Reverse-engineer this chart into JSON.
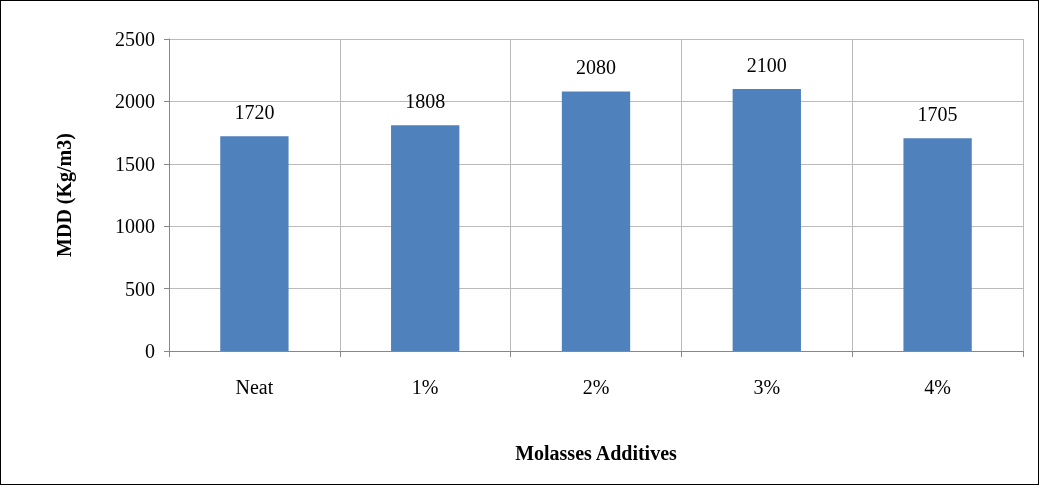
{
  "chart_data": {
    "type": "bar",
    "xlabel": "Molasses Additives",
    "ylabel": "MDD (Kg/m3)",
    "categories": [
      "Neat",
      "1%",
      "2%",
      "3%",
      "4%"
    ],
    "values": [
      1720,
      1808,
      2080,
      2100,
      1705
    ],
    "color": "#4f81bd",
    "ylim": [
      0,
      2500
    ],
    "yticks": [
      0,
      500,
      1000,
      1500,
      2000,
      2500
    ],
    "grid": true,
    "data_labels": true
  }
}
